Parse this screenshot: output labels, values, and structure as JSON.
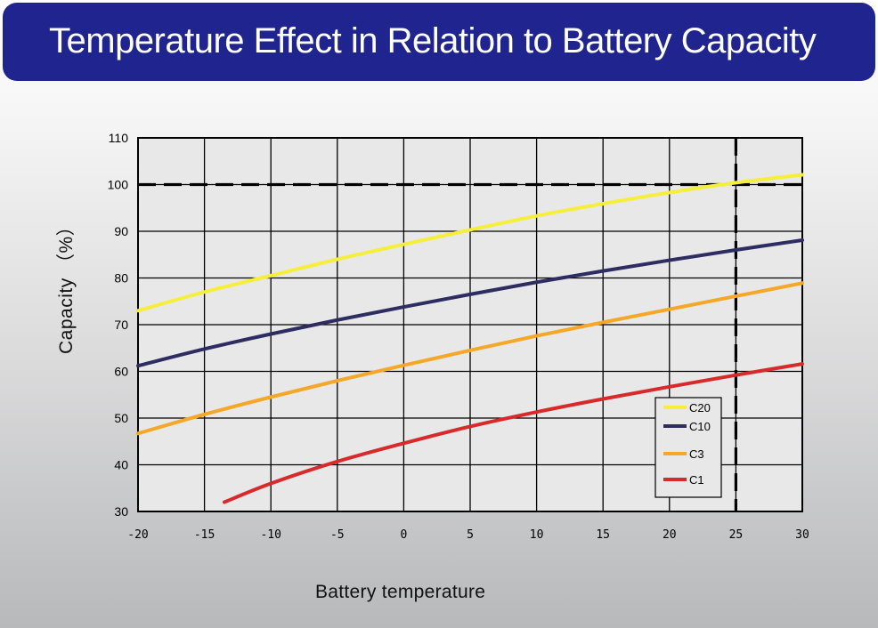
{
  "page": {
    "title": "Temperature Effect in Relation to Battery Capacity"
  },
  "chart_data": {
    "type": "line",
    "title": "Temperature Effect in Relation to Battery Capacity",
    "xlabel": "Battery temperature",
    "ylabel": "Capacity （%）",
    "xlim": [
      -20,
      30
    ],
    "ylim": [
      30,
      110
    ],
    "xticks": [
      -20,
      -15,
      -10,
      -5,
      0,
      5,
      10,
      15,
      20,
      25,
      30
    ],
    "yticks": [
      30,
      40,
      50,
      60,
      70,
      80,
      90,
      100,
      110
    ],
    "grid": true,
    "legend": {
      "placement": "bottom-right"
    },
    "series": [
      {
        "name": "C20",
        "color": "#f5ee3a",
        "x": [
          -20,
          -15,
          -10,
          -5,
          0,
          5,
          10,
          15,
          20,
          25,
          30
        ],
        "y": [
          73,
          77,
          80.5,
          84,
          87.2,
          90.3,
          93.3,
          95.9,
          98.3,
          100.4,
          102.1
        ]
      },
      {
        "name": "C10",
        "color": "#2d2d62",
        "x": [
          -20,
          -15,
          -10,
          -5,
          0,
          5,
          10,
          15,
          20,
          25,
          30
        ],
        "y": [
          61.2,
          64.8,
          68,
          71,
          73.8,
          76.5,
          79.1,
          81.5,
          83.8,
          86,
          88.1
        ]
      },
      {
        "name": "C3",
        "color": "#f5a828",
        "x": [
          -20,
          -15,
          -10,
          -5,
          0,
          5,
          10,
          15,
          20,
          25,
          30
        ],
        "y": [
          46.7,
          50.8,
          54.5,
          58,
          61.3,
          64.5,
          67.6,
          70.5,
          73.3,
          76.1,
          78.9
        ]
      },
      {
        "name": "C1",
        "color": "#d82a2a",
        "x": [
          -13.5,
          -10,
          -5,
          0,
          5,
          10,
          15,
          20,
          25,
          30
        ],
        "y": [
          32,
          36,
          40.7,
          44.6,
          48.2,
          51.3,
          54.1,
          56.7,
          59.2,
          61.6
        ]
      }
    ],
    "reference_lines": [
      {
        "orientation": "horizontal",
        "value": 100,
        "style": "dashed"
      },
      {
        "orientation": "vertical",
        "value": 25,
        "style": "dashed"
      }
    ]
  }
}
